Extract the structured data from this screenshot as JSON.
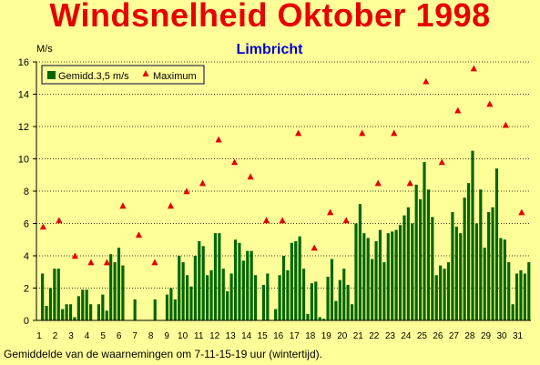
{
  "title": "Windsnelheid Oktober 1998",
  "footnote": "Gemiddelde van de waarnemingen om 7-11-15-19 uur (wintertijd).",
  "chart_data": {
    "type": "bar",
    "subtitle": "Limbricht",
    "ylabel": "M/s",
    "xlabel": "",
    "ylim": [
      0,
      16
    ],
    "yticks": [
      0,
      2,
      4,
      6,
      8,
      10,
      12,
      14,
      16
    ],
    "x_tick_labels": [
      "1",
      "2",
      "3",
      "4",
      "5",
      "6",
      "7",
      "8",
      "9",
      "10",
      "11",
      "12",
      "13",
      "14",
      "15",
      "16",
      "17",
      "18",
      "19",
      "20",
      "21",
      "22",
      "23",
      "24",
      "25",
      "26",
      "27",
      "28",
      "29",
      "30",
      "31"
    ],
    "grid": "horizontal-dotted",
    "legend": "top-left",
    "colors": {
      "background": "#FFFF99",
      "bars": "#006600",
      "markers": "#E60000",
      "title": "#E60000",
      "subtitle": "#0000CC"
    },
    "series": [
      {
        "name": "Gemidd.3,5 m/s",
        "kind": "bar",
        "values": [
          0,
          2.9,
          0.9,
          2.0,
          3.2,
          3.2,
          0.7,
          1.0,
          1.0,
          0.2,
          1.5,
          1.9,
          1.9,
          1.0,
          0.0,
          1.0,
          1.6,
          0.6,
          4.1,
          3.6,
          4.5,
          3.4,
          0.0,
          0.0,
          1.3,
          0.0,
          0.0,
          0.0,
          0.0,
          1.3,
          0.0,
          0.0,
          1.6,
          2.0,
          1.3,
          4.0,
          3.6,
          2.8,
          2.1,
          4.0,
          4.9,
          4.6,
          2.8,
          3.1,
          5.4,
          5.4,
          3.2,
          1.8,
          2.9,
          5.0,
          4.8,
          3.7,
          4.3,
          4.3,
          2.8,
          0.0,
          2.2,
          2.9,
          0.0,
          0.7,
          2.8,
          4.0,
          3.1,
          4.8,
          4.9,
          5.2,
          3.2,
          0.4,
          2.3,
          2.4,
          0.2,
          0.1,
          2.7,
          3.8,
          1.2,
          2.5,
          3.2,
          2.2,
          1.0,
          6.0,
          7.2,
          5.4,
          5.1,
          3.8,
          4.9,
          5.6,
          3.6,
          5.4,
          5.5,
          5.6,
          5.9,
          6.5,
          7.0,
          6.0,
          8.4,
          7.5,
          9.8,
          8.1,
          6.4,
          2.8,
          3.4,
          3.2,
          3.6,
          6.7,
          5.8,
          5.4,
          7.6,
          8.5,
          10.5,
          6.0,
          8.1,
          4.5,
          6.7,
          7.0,
          9.4,
          5.1,
          5.0,
          3.6,
          1.0,
          2.9,
          3.1,
          2.9,
          3.6
        ]
      },
      {
        "name": "Maximum",
        "kind": "marker",
        "points": [
          {
            "day": 1,
            "value": 5.8
          },
          {
            "day": 2,
            "value": 6.2
          },
          {
            "day": 3,
            "value": 4.0
          },
          {
            "day": 4,
            "value": 3.6
          },
          {
            "day": 5,
            "value": 3.6
          },
          {
            "day": 6,
            "value": 7.1
          },
          {
            "day": 7,
            "value": 5.3
          },
          {
            "day": 8,
            "value": 3.6
          },
          {
            "day": 9,
            "value": 7.1
          },
          {
            "day": 10,
            "value": 8.0
          },
          {
            "day": 11,
            "value": 8.5
          },
          {
            "day": 12,
            "value": 11.2
          },
          {
            "day": 13,
            "value": 9.8
          },
          {
            "day": 14,
            "value": 8.9
          },
          {
            "day": 15,
            "value": 6.2
          },
          {
            "day": 16,
            "value": 6.2
          },
          {
            "day": 17,
            "value": 11.6
          },
          {
            "day": 18,
            "value": 4.5
          },
          {
            "day": 19,
            "value": 6.7
          },
          {
            "day": 20,
            "value": 6.2
          },
          {
            "day": 21,
            "value": 11.6
          },
          {
            "day": 22,
            "value": 8.5
          },
          {
            "day": 23,
            "value": 11.6
          },
          {
            "day": 24,
            "value": 8.5
          },
          {
            "day": 25,
            "value": 14.8
          },
          {
            "day": 26,
            "value": 9.8
          },
          {
            "day": 27,
            "value": 13.0
          },
          {
            "day": 28,
            "value": 15.6
          },
          {
            "day": 29,
            "value": 13.4
          },
          {
            "day": 30,
            "value": 12.1
          },
          {
            "day": 31,
            "value": 6.7
          }
        ]
      }
    ]
  }
}
